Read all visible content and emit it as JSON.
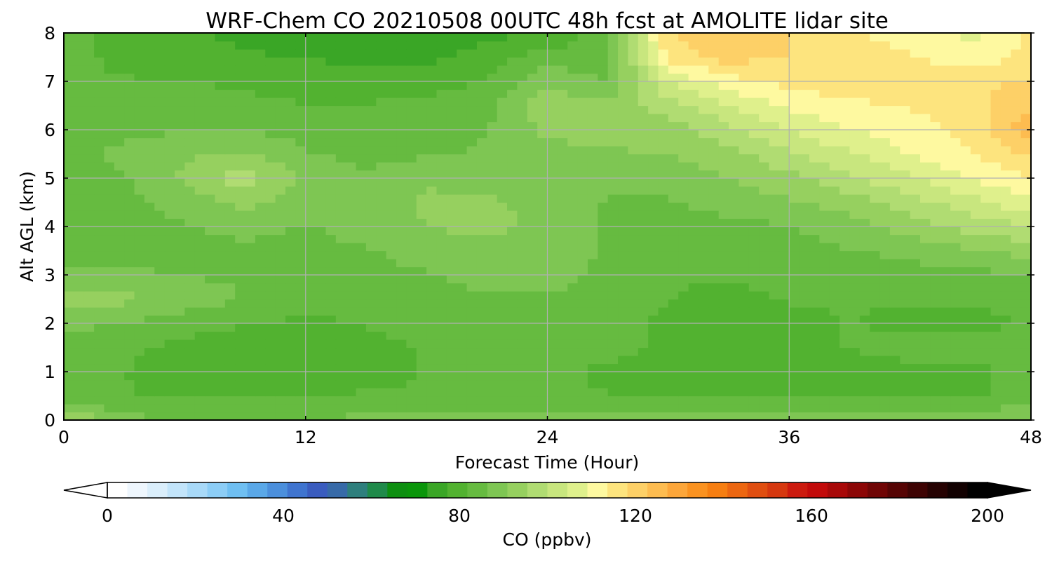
{
  "chart_data": {
    "type": "heatmap",
    "title": "WRF-Chem CO  20210508 00UTC 48h fcst at AMOLITE lidar site",
    "xlabel": "Forecast Time (Hour)",
    "ylabel": "Alt AGL (km)",
    "xlim": [
      0,
      48
    ],
    "ylim": [
      0,
      8
    ],
    "x_ticks": [
      0,
      12,
      24,
      36,
      48
    ],
    "y_ticks": [
      0,
      1,
      2,
      3,
      4,
      5,
      6,
      7,
      8
    ],
    "grid": true,
    "colorbar": {
      "label": "CO  (ppbv)",
      "min": 0,
      "max": 200,
      "ticks": [
        0,
        40,
        80,
        120,
        160,
        200
      ],
      "extend": "both",
      "colors": [
        "#ffffff",
        "#eef6fd",
        "#daeefb",
        "#c2e4fa",
        "#a8d9f8",
        "#8ccdf6",
        "#6fbff2",
        "#5aa8e8",
        "#4b8fdc",
        "#3f74cf",
        "#3a5cbf",
        "#376aa8",
        "#2e7f7d",
        "#1f8a4a",
        "#0d8f10",
        "#0a960a",
        "#3aa626",
        "#52b230",
        "#66bb40",
        "#7ec653",
        "#96d05f",
        "#b0dc72",
        "#c8e67e",
        "#dff08c",
        "#fef9a0",
        "#fde47e",
        "#fdd067",
        "#fdbc50",
        "#fca63a",
        "#fa9220",
        "#f67e11",
        "#ec6610",
        "#e04e10",
        "#d6380f",
        "#cc1a0e",
        "#c20a0a",
        "#a80808",
        "#8c0606",
        "#700505",
        "#560404",
        "#3e0303",
        "#260202",
        "#120101",
        "#000000"
      ]
    },
    "x": [
      0,
      3,
      6,
      9,
      12,
      15,
      18,
      21,
      24,
      27,
      30,
      33,
      36,
      39,
      42,
      45,
      48
    ],
    "y": [
      0,
      0.5,
      1,
      1.5,
      2,
      2.5,
      3,
      3.5,
      4,
      4.5,
      5,
      5.5,
      6,
      6.5,
      7,
      7.5,
      8
    ],
    "values": [
      [
        96,
        88,
        86,
        86,
        86,
        88,
        88,
        88,
        88,
        88,
        88,
        88,
        92,
        88,
        88,
        88,
        92
      ],
      [
        84,
        82,
        81,
        81,
        82,
        82,
        82,
        82,
        82,
        82,
        81,
        81,
        80,
        81,
        81,
        81,
        84
      ],
      [
        84,
        82,
        79,
        79,
        80,
        81,
        82,
        83,
        83,
        81,
        79,
        79,
        79,
        80,
        81,
        81,
        83
      ],
      [
        84,
        83,
        80,
        79,
        80,
        81,
        82,
        83,
        84,
        83,
        81,
        80,
        81,
        82,
        83,
        83,
        84
      ],
      [
        88,
        86,
        84,
        82,
        81,
        82,
        83,
        83,
        84,
        83,
        81,
        80,
        81,
        82,
        81,
        81,
        82
      ],
      [
        92,
        92,
        89,
        86,
        84,
        83,
        84,
        86,
        86,
        84,
        82,
        81,
        82,
        82,
        82,
        82,
        83
      ],
      [
        88,
        88,
        86,
        86,
        85,
        85,
        86,
        88,
        88,
        85,
        82,
        82,
        83,
        83,
        84,
        85,
        86
      ],
      [
        84,
        84,
        84,
        85,
        85,
        86,
        88,
        90,
        89,
        86,
        84,
        84,
        85,
        86,
        88,
        90,
        93
      ],
      [
        83,
        84,
        86,
        88,
        86,
        88,
        91,
        92,
        90,
        86,
        84,
        85,
        86,
        89,
        93,
        97,
        100
      ],
      [
        84,
        85,
        88,
        92,
        88,
        88,
        92,
        92,
        89,
        86,
        86,
        88,
        90,
        93,
        98,
        103,
        108
      ],
      [
        84,
        86,
        92,
        98,
        90,
        87,
        90,
        89,
        88,
        88,
        88,
        91,
        94,
        99,
        104,
        109,
        114
      ],
      [
        84,
        88,
        90,
        92,
        87,
        85,
        86,
        87,
        89,
        90,
        91,
        94,
        99,
        104,
        109,
        113,
        119
      ],
      [
        82,
        85,
        86,
        86,
        84,
        83,
        84,
        86,
        92,
        94,
        93,
        99,
        105,
        109,
        112,
        115,
        126
      ],
      [
        82,
        83,
        84,
        83,
        82,
        82,
        83,
        85,
        94,
        92,
        98,
        104,
        110,
        112,
        114,
        116,
        122
      ],
      [
        82,
        82,
        82,
        81,
        80,
        80,
        80,
        82,
        90,
        86,
        105,
        112,
        115,
        117,
        119,
        118,
        118
      ],
      [
        83,
        81,
        80,
        78,
        77,
        76,
        76,
        80,
        84,
        84,
        115,
        120,
        118,
        116,
        114,
        110,
        116
      ],
      [
        83,
        80,
        78,
        76,
        74,
        73,
        73,
        76,
        78,
        84,
        118,
        122,
        118,
        114,
        112,
        108,
        114
      ]
    ]
  }
}
